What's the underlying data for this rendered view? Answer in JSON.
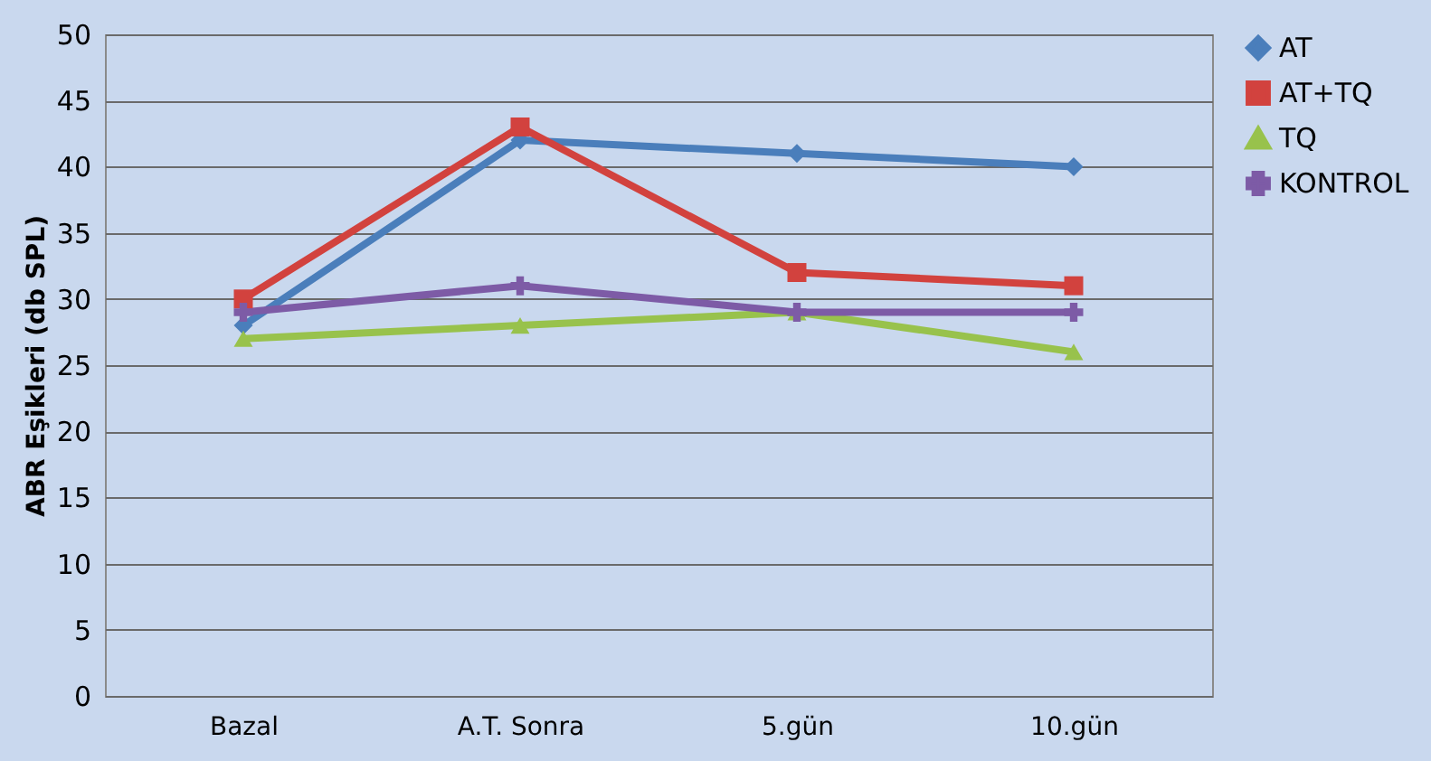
{
  "chart_data": {
    "type": "line",
    "ylabel": "ABR Eşikleri    (db SPL)",
    "categories": [
      "Bazal",
      "A.T. Sonra",
      "5.gün",
      "10.gün"
    ],
    "series": [
      {
        "name": "AT",
        "color": "#4a7ebb",
        "marker": "diamond",
        "values": [
          28,
          42,
          41,
          40
        ]
      },
      {
        "name": "AT+TQ",
        "color": "#d2423e",
        "marker": "square",
        "values": [
          30,
          43,
          32,
          31
        ]
      },
      {
        "name": "TQ",
        "color": "#98c24c",
        "marker": "triangle",
        "values": [
          27,
          28,
          29,
          26
        ]
      },
      {
        "name": "KONTROL",
        "color": "#7d5ba6",
        "marker": "cross",
        "values": [
          29,
          31,
          29,
          29
        ]
      }
    ],
    "ylim": [
      0,
      50
    ],
    "yticks": [
      0,
      5,
      10,
      15,
      20,
      25,
      30,
      35,
      40,
      45,
      50
    ],
    "grid": "y",
    "legend": "right"
  }
}
